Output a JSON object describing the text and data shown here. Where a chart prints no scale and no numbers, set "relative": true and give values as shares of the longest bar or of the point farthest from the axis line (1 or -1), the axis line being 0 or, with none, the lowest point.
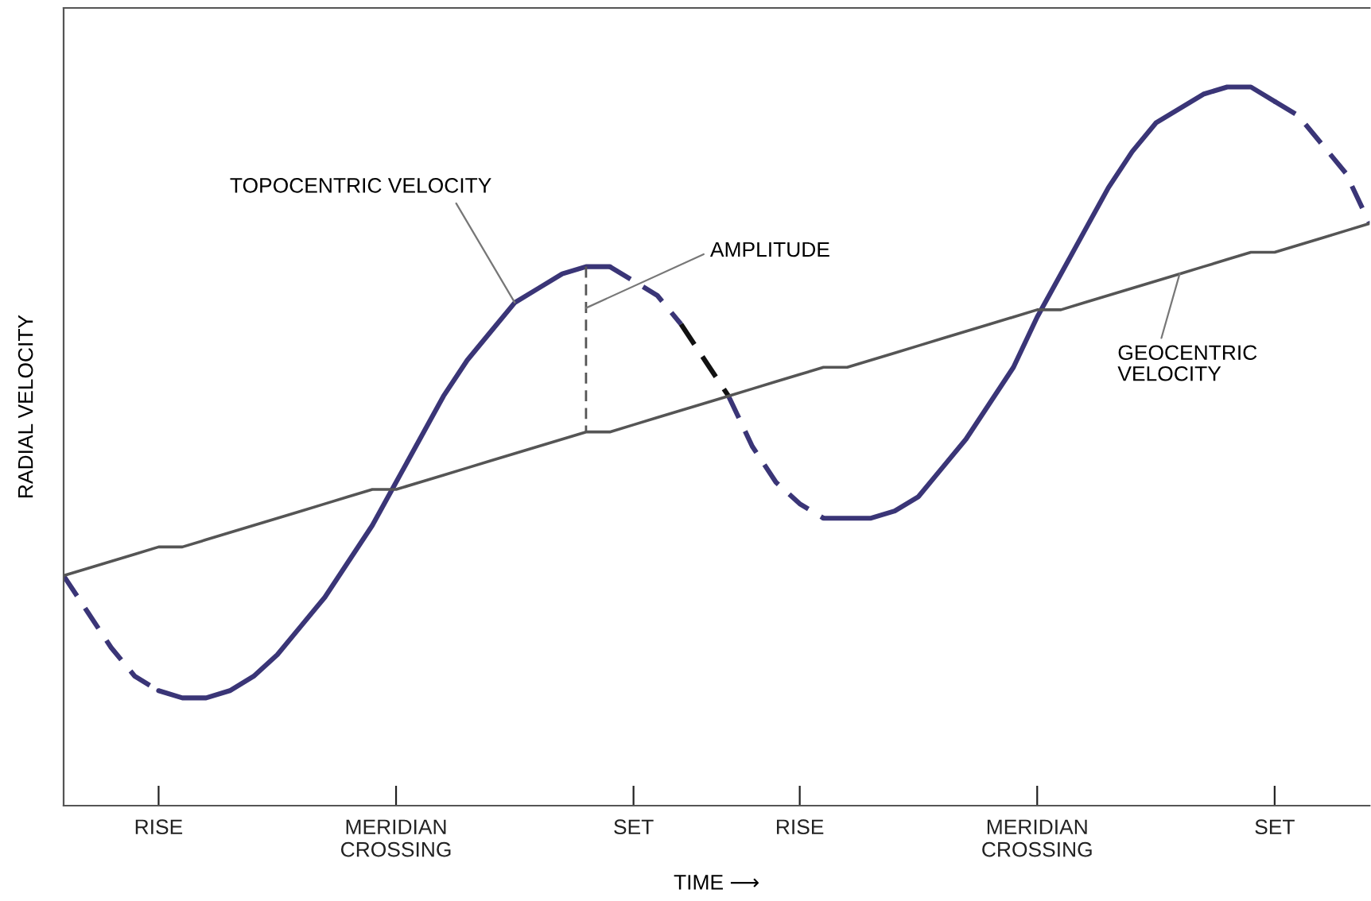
{
  "chart_data": {
    "type": "line",
    "relative": true,
    "ylabel": "RADIAL VELOCITY",
    "xlabel": "TIME ⟶",
    "categories": [
      null,
      null,
      null,
      null,
      "RISE",
      null,
      null,
      null,
      null,
      null,
      null,
      null,
      null,
      null,
      "MERIDIAN\nCROSSING",
      null,
      null,
      null,
      null,
      null,
      null,
      null,
      null,
      null,
      "SET",
      null,
      null,
      null,
      null,
      null,
      null,
      "RISE",
      null,
      null,
      null,
      null,
      null,
      null,
      null,
      null,
      null,
      "MERIDIAN\nCROSSING",
      null,
      null,
      null,
      null,
      null,
      null,
      null,
      null,
      null,
      "SET",
      null,
      null,
      null,
      null
    ],
    "series": [
      {
        "color": "#3a3577",
        "line_style": "solid",
        "values": [
          null,
          null,
          null,
          null,
          0.16,
          0.15,
          0.15,
          0.16,
          0.18,
          0.21,
          0.25,
          0.29,
          0.34,
          0.39,
          0.45,
          0.51,
          0.57,
          0.62,
          0.66,
          0.7,
          0.72,
          0.74,
          0.75,
          0.75,
          null,
          null,
          null,
          null,
          null,
          null,
          null,
          null,
          0.4,
          0.4,
          0.4,
          0.41,
          0.43,
          0.47,
          0.51,
          0.56,
          0.61,
          0.68,
          0.74,
          0.8,
          0.86,
          0.91,
          0.95,
          0.97,
          0.99,
          1.0,
          1.0,
          0.98,
          null,
          null,
          null,
          null
        ]
      },
      {
        "color": "#3a3577",
        "line_style": "dashed",
        "values": [
          0.32,
          0.27,
          0.22,
          0.18,
          0.16,
          null,
          null,
          null,
          null,
          null,
          null,
          null,
          null,
          null,
          null,
          null,
          null,
          null,
          null,
          null,
          null,
          null,
          null,
          0.75,
          0.73,
          0.71,
          0.67,
          null,
          0.57,
          0.5,
          0.45,
          0.42,
          0.4,
          null,
          null,
          null,
          null,
          null,
          null,
          null,
          null,
          null,
          null,
          null,
          null,
          null,
          null,
          null,
          null,
          null,
          null,
          0.98,
          0.96,
          0.92,
          0.88,
          0.81
        ]
      },
      {
        "color": "#111111",
        "line_style": "dashed",
        "values": [
          null,
          null,
          null,
          null,
          null,
          null,
          null,
          null,
          null,
          null,
          null,
          null,
          null,
          null,
          null,
          null,
          null,
          null,
          null,
          null,
          null,
          null,
          null,
          null,
          null,
          null,
          0.67,
          0.62,
          0.57,
          null,
          null,
          null,
          null,
          null,
          null,
          null,
          null,
          null,
          null,
          null,
          null,
          null,
          null,
          null,
          null,
          null,
          null,
          null,
          null,
          null,
          null,
          null,
          null,
          null,
          null,
          null
        ]
      },
      {
        "color": "#555555",
        "line_style": "solid",
        "values": [
          0.32,
          0.33,
          0.34,
          0.35,
          0.36,
          0.36,
          0.37,
          0.38,
          0.39,
          0.4,
          0.41,
          0.42,
          0.43,
          0.44,
          0.44,
          0.45,
          0.46,
          0.47,
          0.48,
          0.49,
          0.5,
          0.51,
          0.52,
          0.52,
          0.53,
          0.54,
          0.55,
          0.56,
          0.57,
          0.58,
          0.59,
          0.6,
          0.61,
          0.61,
          0.62,
          0.63,
          0.64,
          0.65,
          0.66,
          0.67,
          0.68,
          0.69,
          0.69,
          0.7,
          0.71,
          0.72,
          0.73,
          0.74,
          0.75,
          0.76,
          0.77,
          0.77,
          0.78,
          0.79,
          0.8,
          0.81
        ]
      }
    ],
    "annotations": [
      "TOPOCENTRIC VELOCITY",
      "AMPLITUDE",
      "GEOCENTRIC\nVELOCITY"
    ],
    "grid": false,
    "legend": false
  }
}
